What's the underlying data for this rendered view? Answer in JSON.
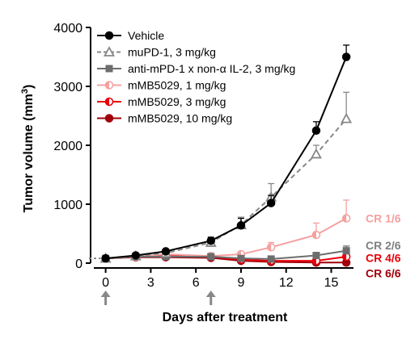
{
  "chart_data": {
    "type": "line",
    "title": "",
    "xlabel": "Days after treatment",
    "ylabel": "Tumor volume (mm",
    "ylabel_superscript": "3",
    "ylabel_suffix": ")",
    "xlim": [
      -1,
      16.8
    ],
    "ylim": [
      0,
      4000
    ],
    "x_ticks": [
      0,
      3,
      6,
      9,
      12,
      15
    ],
    "y_ticks": [
      0,
      1000,
      2000,
      3000,
      4000
    ],
    "grid": false,
    "legend_position": "top-left",
    "dosing_days": [
      0,
      7
    ],
    "series": [
      {
        "name": "Vehicle",
        "color": "#000000",
        "line_style": "solid",
        "marker": "circle-filled",
        "x": [
          0,
          2,
          4,
          7,
          9,
          11,
          14,
          16
        ],
        "y": [
          80,
          130,
          200,
          380,
          640,
          1020,
          2250,
          3500
        ],
        "err": [
          20,
          30,
          40,
          60,
          120,
          130,
          150,
          200
        ]
      },
      {
        "name": "muPD-1, 3 mg/kg",
        "color": "#888888",
        "line_style": "dashed",
        "marker": "triangle-open",
        "x": [
          0,
          2,
          4,
          7,
          9,
          11,
          14,
          16
        ],
        "y": [
          80,
          120,
          170,
          350,
          650,
          1120,
          1850,
          2450
        ],
        "err": [
          20,
          30,
          40,
          60,
          130,
          230,
          150,
          450
        ]
      },
      {
        "name": "anti-mPD-1 x non-α IL-2, 3 mg/kg",
        "color": "#6d6d6d",
        "line_style": "solid",
        "marker": "square-filled",
        "x": [
          0,
          2,
          4,
          7,
          9,
          11,
          14,
          16
        ],
        "y": [
          80,
          110,
          110,
          110,
          80,
          70,
          130,
          210
        ],
        "err": [
          10,
          20,
          20,
          30,
          20,
          20,
          40,
          80
        ]
      },
      {
        "name": "mMB5029, 1 mg/kg",
        "color": "#f4a0a0",
        "line_style": "solid",
        "marker": "circle-half",
        "x": [
          0,
          2,
          4,
          7,
          9,
          11,
          14,
          16
        ],
        "y": [
          80,
          110,
          150,
          120,
          150,
          270,
          480,
          760
        ],
        "err": [
          10,
          20,
          30,
          30,
          40,
          80,
          200,
          310
        ]
      },
      {
        "name": "mMB5029, 3 mg/kg",
        "color": "#e8000b",
        "line_style": "solid",
        "marker": "circle-half",
        "x": [
          0,
          2,
          4,
          7,
          9,
          11,
          14,
          16
        ],
        "y": [
          80,
          110,
          120,
          110,
          60,
          40,
          40,
          110
        ],
        "err": [
          10,
          20,
          20,
          20,
          20,
          15,
          20,
          50
        ]
      },
      {
        "name": "mMB5029, 10 mg/kg",
        "color": "#a0000a",
        "line_style": "solid",
        "marker": "circle-filled",
        "x": [
          0,
          2,
          4,
          7,
          9,
          11,
          14,
          16
        ],
        "y": [
          80,
          100,
          100,
          90,
          40,
          20,
          10,
          10
        ],
        "err": [
          10,
          15,
          15,
          15,
          10,
          5,
          5,
          5
        ]
      }
    ],
    "annotations": [
      {
        "text": "CR 1/6",
        "color": "#f4a0a0",
        "y": 760
      },
      {
        "text": "CR 2/6",
        "color": "#808080",
        "y": 300
      },
      {
        "text": "CR 4/6",
        "color": "#e8000b",
        "y": 90
      },
      {
        "text": "CR 6/6",
        "color": "#a0000a",
        "y": -170
      }
    ]
  }
}
